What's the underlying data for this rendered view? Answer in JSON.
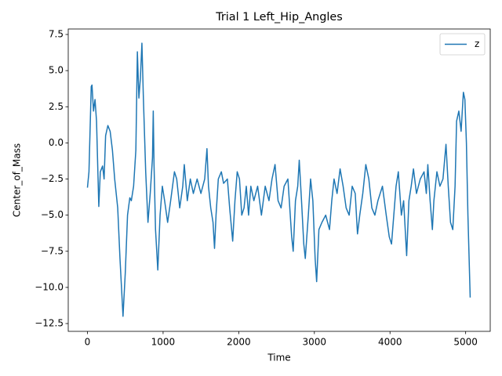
{
  "chart_data": {
    "type": "line",
    "title": "Trial 1 Left_Hip_Angles",
    "x_label": "Time",
    "y_label": "Center_of_Mass",
    "legend": "upper right",
    "grid": false,
    "xlim": [
      -254,
      5325
    ],
    "ylim": [
      -13.04,
      7.88
    ],
    "xticks": [
      0,
      1000,
      2000,
      3000,
      4000,
      5000
    ],
    "yticks": [
      {
        "value": -12.5,
        "label": "−12.5"
      },
      {
        "value": -10.0,
        "label": "−10.0"
      },
      {
        "value": -7.5,
        "label": "−7.5"
      },
      {
        "value": -5.0,
        "label": "−5.0"
      },
      {
        "value": -2.5,
        "label": "−2.5"
      },
      {
        "value": 0.0,
        "label": "0.0"
      },
      2.5,
      {
        "value": 5.0,
        "label": "5.0"
      },
      7.5
    ],
    "x": [
      0,
      20,
      50,
      60,
      80,
      100,
      120,
      150,
      170,
      200,
      220,
      240,
      270,
      300,
      330,
      360,
      400,
      430,
      470,
      500,
      530,
      560,
      580,
      610,
      640,
      660,
      680,
      700,
      720,
      740,
      770,
      800,
      830,
      860,
      870,
      880,
      900,
      930,
      960,
      990,
      1020,
      1060,
      1100,
      1150,
      1180,
      1220,
      1260,
      1280,
      1320,
      1360,
      1400,
      1450,
      1500,
      1550,
      1580,
      1600,
      1630,
      1660,
      1680,
      1700,
      1730,
      1770,
      1800,
      1850,
      1880,
      1920,
      1950,
      1980,
      2010,
      2040,
      2070,
      2100,
      2130,
      2160,
      2200,
      2250,
      2300,
      2350,
      2400,
      2440,
      2480,
      2520,
      2560,
      2600,
      2650,
      2700,
      2720,
      2750,
      2780,
      2800,
      2830,
      2860,
      2880,
      2920,
      2950,
      2980,
      3010,
      3030,
      3060,
      3100,
      3150,
      3200,
      3230,
      3260,
      3300,
      3340,
      3380,
      3420,
      3460,
      3500,
      3540,
      3570,
      3600,
      3640,
      3680,
      3720,
      3760,
      3800,
      3840,
      3900,
      3950,
      3990,
      4020,
      4050,
      4080,
      4110,
      4150,
      4180,
      4220,
      4250,
      4280,
      4310,
      4350,
      4400,
      4450,
      4480,
      4500,
      4530,
      4560,
      4580,
      4620,
      4660,
      4700,
      4740,
      4770,
      4800,
      4830,
      4860,
      4880,
      4910,
      4940,
      4970,
      4990,
      5010,
      5030,
      5060
    ],
    "series": [
      {
        "name": "z",
        "color": "#1f77b4",
        "values": [
          -3.1,
          -2,
          3.9,
          4,
          2.2,
          3,
          1.5,
          -4.4,
          -2,
          -1.6,
          -2.5,
          0.5,
          1.2,
          0.8,
          -0.5,
          -2.5,
          -4.5,
          -8,
          -12,
          -9,
          -5,
          -3.8,
          -4,
          -3,
          -0.5,
          6.3,
          3.1,
          4.5,
          6.9,
          3,
          -2,
          -5.5,
          -3.5,
          -1,
          2.2,
          -1.5,
          -6,
          -8.8,
          -5,
          -3,
          -4,
          -5.5,
          -4,
          -2,
          -2.5,
          -4.5,
          -3,
          -1.5,
          -4,
          -2.5,
          -3.5,
          -2.5,
          -3.5,
          -2.5,
          -0.4,
          -3,
          -4.5,
          -5.5,
          -7.3,
          -5,
          -2.5,
          -2,
          -2.8,
          -2.5,
          -4.5,
          -6.8,
          -4,
          -2,
          -2.5,
          -5,
          -4.5,
          -3,
          -5,
          -3,
          -4,
          -3,
          -5,
          -3,
          -4,
          -2.5,
          -1.5,
          -4,
          -4.5,
          -3,
          -2.5,
          -6.5,
          -7.5,
          -4,
          -3,
          -1.2,
          -4,
          -7,
          -8,
          -5,
          -2.5,
          -4,
          -8,
          -9.6,
          -6,
          -5.5,
          -5,
          -6,
          -4,
          -2.5,
          -3.5,
          -1.8,
          -3,
          -4.5,
          -5,
          -3,
          -3.5,
          -6.3,
          -5,
          -3.5,
          -1.5,
          -2.5,
          -4.5,
          -5,
          -4,
          -3,
          -5,
          -6.5,
          -7,
          -5,
          -3,
          -2,
          -5,
          -4,
          -7.8,
          -4,
          -3,
          -1.8,
          -3.5,
          -2.5,
          -2,
          -3.5,
          -1.5,
          -4,
          -6,
          -4,
          -2,
          -3,
          -2.5,
          -0.1,
          -3,
          -5.5,
          -6,
          -3,
          1.5,
          2.2,
          0.8,
          3.5,
          3,
          0,
          -5,
          -10.7
        ]
      }
    ]
  }
}
